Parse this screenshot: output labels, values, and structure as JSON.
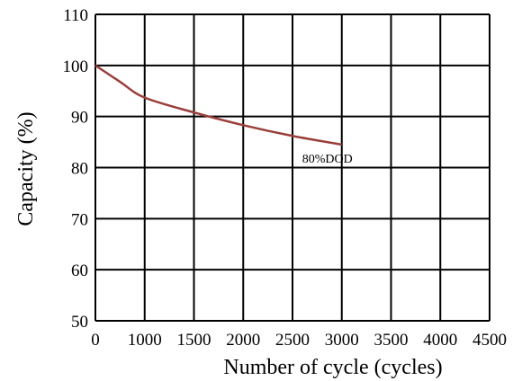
{
  "chart_data": {
    "type": "line",
    "title": "",
    "xlabel": "Number of cycle (cycles)",
    "ylabel": "Capacity (%)",
    "xlim": [
      0,
      4500
    ],
    "ylim": [
      50,
      110
    ],
    "x_ticks": [
      0,
      1000,
      1500,
      2000,
      2500,
      3000,
      3500,
      4000,
      4500
    ],
    "y_ticks": [
      50,
      60,
      70,
      80,
      90,
      100,
      110
    ],
    "grid": true,
    "series": [
      {
        "name": "",
        "color": "#9a3f3b",
        "x": [
          0,
          500,
          1000,
          1500,
          2000,
          2500,
          3000
        ],
        "y": [
          100,
          96.8,
          93.7,
          90.8,
          88.3,
          86.2,
          84.5
        ]
      }
    ],
    "annotations": [
      {
        "text": "80%DOD",
        "x": 3000,
        "y": 84.5
      }
    ]
  }
}
